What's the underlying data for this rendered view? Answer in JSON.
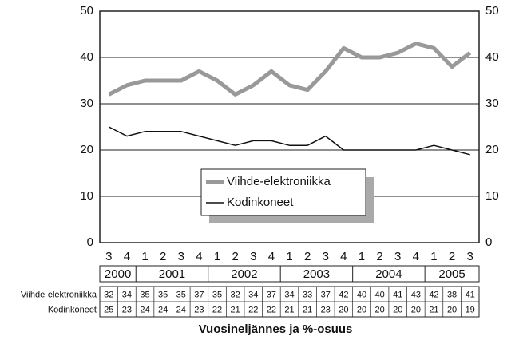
{
  "chart_data": {
    "type": "line",
    "x_title": "Vuosineljännes ja %-osuus",
    "categories": [
      "3",
      "4",
      "1",
      "2",
      "3",
      "4",
      "1",
      "2",
      "3",
      "4",
      "1",
      "2",
      "3",
      "4",
      "1",
      "2",
      "3",
      "4",
      "1",
      "2",
      "3"
    ],
    "years": [
      "2000",
      "2001",
      "2002",
      "2003",
      "2004",
      "2005"
    ],
    "series": [
      {
        "name": "Viihde-elektroniikka",
        "color": "#999999",
        "values": [
          32,
          34,
          35,
          35,
          35,
          37,
          35,
          32,
          34,
          37,
          34,
          33,
          37,
          42,
          40,
          40,
          41,
          43,
          42,
          38,
          41
        ]
      },
      {
        "name": "Kodinkoneet",
        "color": "#111111",
        "values": [
          25,
          23,
          24,
          24,
          24,
          23,
          22,
          21,
          22,
          22,
          21,
          21,
          23,
          20,
          20,
          20,
          20,
          20,
          21,
          20,
          19
        ]
      }
    ],
    "ylim": [
      0,
      50
    ],
    "yticks": [
      0,
      10,
      20,
      30,
      40,
      50
    ],
    "grid": true
  }
}
